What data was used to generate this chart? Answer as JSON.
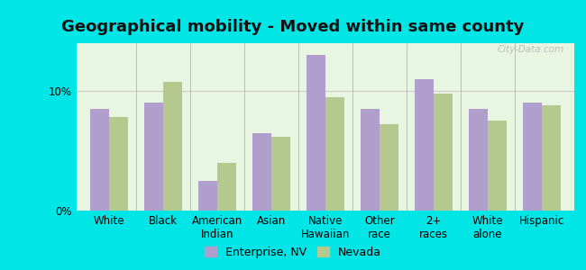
{
  "title": "Geographical mobility - Moved within same county",
  "categories": [
    "White",
    "Black",
    "American\nIndian",
    "Asian",
    "Native\nHawaiian",
    "Other\nrace",
    "2+\nraces",
    "White\nalone",
    "Hispanic"
  ],
  "enterprise_values": [
    8.5,
    9.0,
    2.5,
    6.5,
    13.0,
    8.5,
    11.0,
    8.5,
    9.0
  ],
  "nevada_values": [
    7.8,
    10.8,
    4.0,
    6.2,
    9.5,
    7.2,
    9.8,
    7.5,
    8.8
  ],
  "enterprise_color": "#b09fcc",
  "nevada_color": "#b5c98e",
  "plot_bg": "#e8f5e0",
  "outer_bg": "#00e5e5",
  "ylim": [
    0,
    14
  ],
  "yticks": [
    0,
    10
  ],
  "ytick_labels": [
    "0%",
    "10%"
  ],
  "legend_enterprise": "Enterprise, NV",
  "legend_nevada": "Nevada",
  "bar_width": 0.35,
  "title_fontsize": 13,
  "tick_fontsize": 8.5,
  "legend_fontsize": 9,
  "watermark": "City-Data.com"
}
